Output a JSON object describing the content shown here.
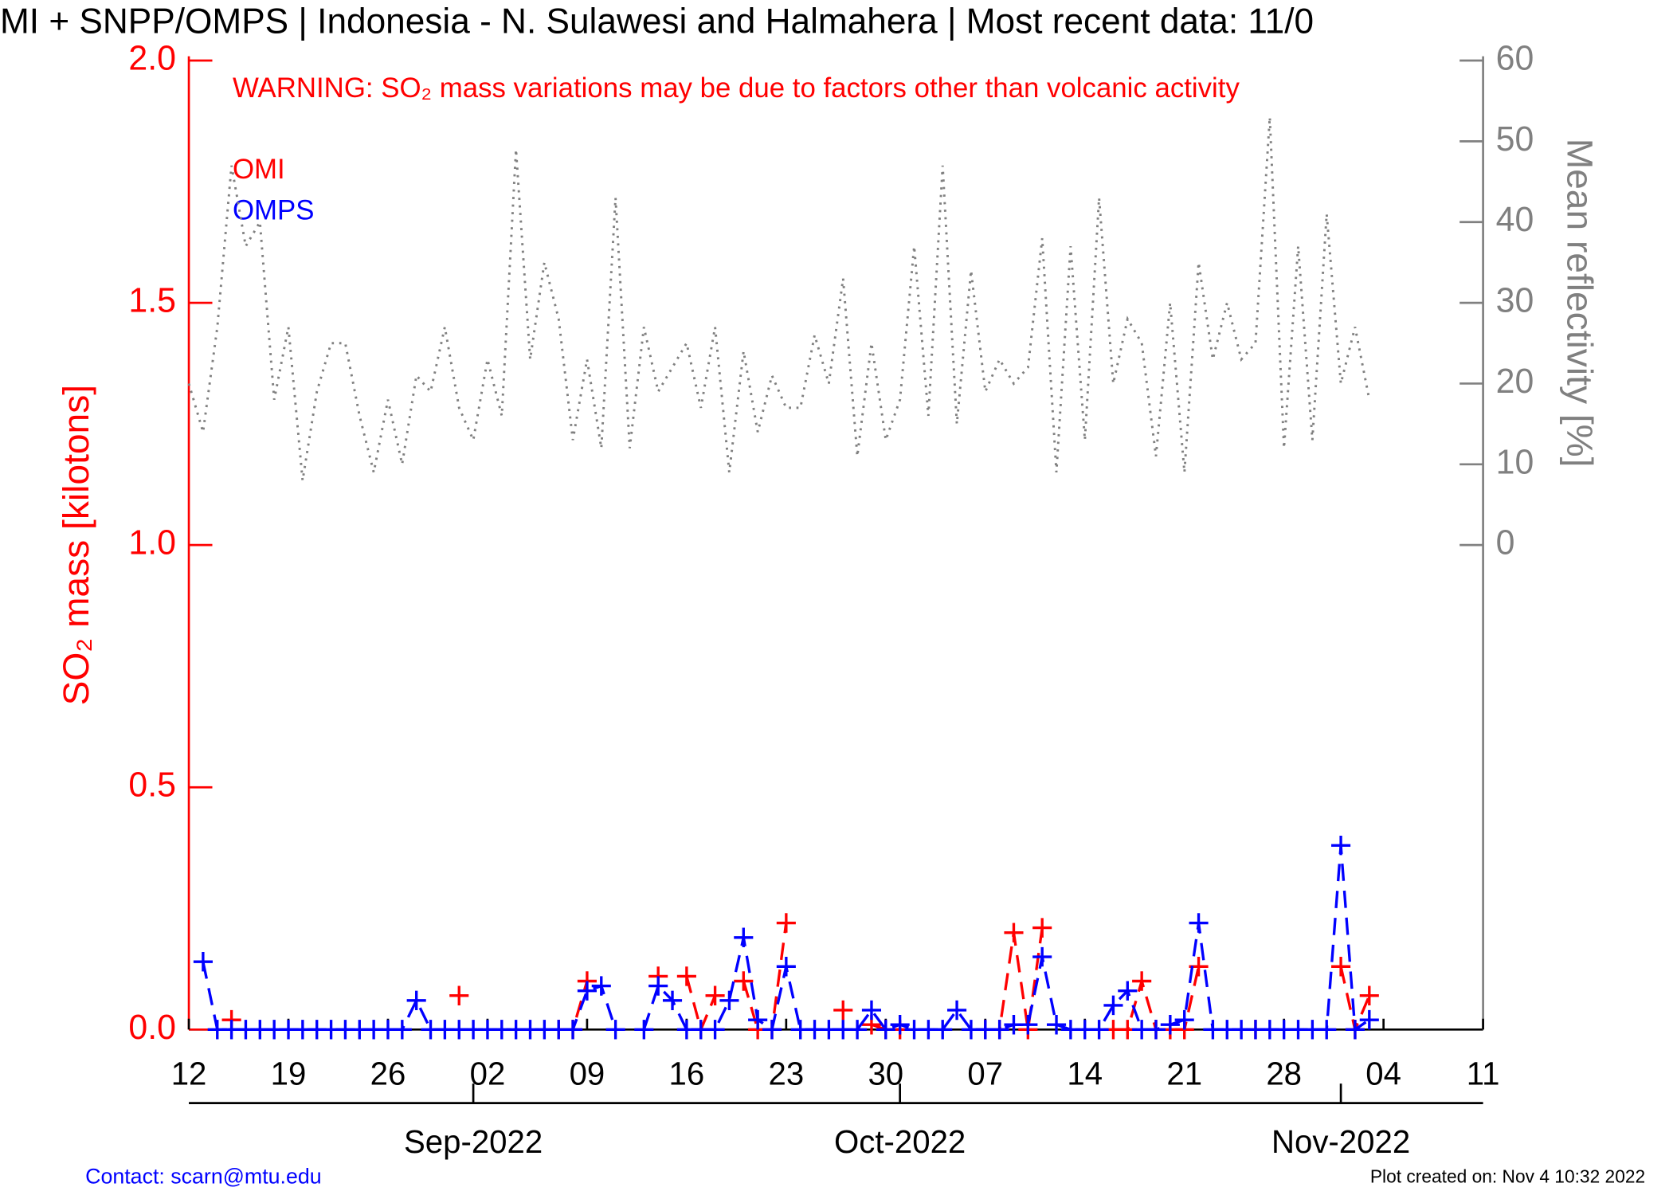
{
  "chart_data": {
    "type": "line",
    "title": "MI + SNPP/OMPS | Indonesia - N. Sulawesi and Halmahera | Most recent data: 11/0",
    "annotation": "WARNING: SO₂ mass variations may be due to factors other than volcanic activity",
    "y_label": "SO₂ mass [kilotons]",
    "y2_label": "Mean reflectivity [%]",
    "footer_left": "Contact: scarn@mtu.edu",
    "footer_right": "Plot created on: Nov  4 10:32 2022",
    "x": [
      "2022-08-12",
      "2022-08-13",
      "2022-08-14",
      "2022-08-15",
      "2022-08-16",
      "2022-08-17",
      "2022-08-18",
      "2022-08-19",
      "2022-08-20",
      "2022-08-21",
      "2022-08-22",
      "2022-08-23",
      "2022-08-24",
      "2022-08-25",
      "2022-08-26",
      "2022-08-27",
      "2022-08-28",
      "2022-08-29",
      "2022-08-30",
      "2022-08-31",
      "2022-09-01",
      "2022-09-02",
      "2022-09-03",
      "2022-09-04",
      "2022-09-05",
      "2022-09-06",
      "2022-09-07",
      "2022-09-08",
      "2022-09-09",
      "2022-09-10",
      "2022-09-11",
      "2022-09-12",
      "2022-09-13",
      "2022-09-14",
      "2022-09-15",
      "2022-09-16",
      "2022-09-17",
      "2022-09-18",
      "2022-09-19",
      "2022-09-20",
      "2022-09-21",
      "2022-09-22",
      "2022-09-23",
      "2022-09-24",
      "2022-09-25",
      "2022-09-26",
      "2022-09-27",
      "2022-09-28",
      "2022-09-29",
      "2022-09-30",
      "2022-10-01",
      "2022-10-02",
      "2022-10-03",
      "2022-10-04",
      "2022-10-05",
      "2022-10-06",
      "2022-10-07",
      "2022-10-08",
      "2022-10-09",
      "2022-10-10",
      "2022-10-11",
      "2022-10-12",
      "2022-10-13",
      "2022-10-14",
      "2022-10-15",
      "2022-10-16",
      "2022-10-17",
      "2022-10-18",
      "2022-10-19",
      "2022-10-20",
      "2022-10-21",
      "2022-10-22",
      "2022-10-23",
      "2022-10-24",
      "2022-10-25",
      "2022-10-26",
      "2022-10-27",
      "2022-10-28",
      "2022-10-29",
      "2022-10-30",
      "2022-10-31",
      "2022-11-01",
      "2022-11-02",
      "2022-11-03"
    ],
    "xlim": [
      "2022-08-12",
      "2022-11-11"
    ],
    "xticks": [
      {
        "value": "2022-08-12",
        "label": "12"
      },
      {
        "value": "2022-08-19",
        "label": "19"
      },
      {
        "value": "2022-08-26",
        "label": "26"
      },
      {
        "value": "2022-09-02",
        "label": "02"
      },
      {
        "value": "2022-09-09",
        "label": "09"
      },
      {
        "value": "2022-09-16",
        "label": "16"
      },
      {
        "value": "2022-09-23",
        "label": "23"
      },
      {
        "value": "2022-09-30",
        "label": "30"
      },
      {
        "value": "2022-10-07",
        "label": "07"
      },
      {
        "value": "2022-10-14",
        "label": "14"
      },
      {
        "value": "2022-10-21",
        "label": "21"
      },
      {
        "value": "2022-10-28",
        "label": "28"
      },
      {
        "value": "2022-11-04",
        "label": "04"
      },
      {
        "value": "2022-11-11",
        "label": "11"
      }
    ],
    "month_ticks": [
      {
        "value": "2022-09-01",
        "label": "Sep-2022"
      },
      {
        "value": "2022-10-01",
        "label": "Oct-2022"
      },
      {
        "value": "2022-11-01",
        "label": "Nov-2022"
      }
    ],
    "ylim": [
      0,
      2.0
    ],
    "yticks": [
      {
        "value": 0,
        "label": "0.0"
      },
      0.5,
      {
        "value": 1,
        "label": "1.0"
      },
      1.5,
      {
        "value": 2,
        "label": "2.0"
      }
    ],
    "y2lim": [
      -60,
      60
    ],
    "y2ticks": [
      0,
      10,
      20,
      30,
      40,
      50,
      60
    ],
    "series": [
      {
        "name": "OMI",
        "color": "#ff0000",
        "style": "dashed",
        "marker": "plus",
        "values": [
          null,
          null,
          null,
          0.02,
          null,
          null,
          null,
          null,
          null,
          null,
          null,
          null,
          null,
          null,
          null,
          null,
          null,
          null,
          null,
          0.07,
          null,
          null,
          null,
          null,
          null,
          null,
          0,
          0,
          0.1,
          null,
          null,
          null,
          null,
          0.11,
          null,
          0.11,
          0,
          0.07,
          null,
          0.1,
          0,
          0,
          0.22,
          null,
          null,
          null,
          0.04,
          null,
          0.01,
          0,
          0,
          null,
          null,
          null,
          null,
          null,
          0,
          0,
          0.2,
          0,
          0.21,
          null,
          null,
          null,
          null,
          0,
          0,
          0.1,
          0,
          0,
          0,
          0.13,
          null,
          null,
          null,
          0,
          null,
          null,
          null,
          null,
          null,
          0.13,
          0,
          0.07
        ]
      },
      {
        "name": "OMPS",
        "color": "#0000ff",
        "style": "dashed",
        "marker": "plus",
        "values": [
          null,
          0.14,
          0,
          0,
          0,
          0,
          0,
          0,
          0,
          0,
          0,
          0,
          0,
          0,
          0,
          0,
          0.06,
          0,
          0,
          0,
          0,
          0,
          0,
          0,
          0,
          0,
          0,
          0,
          0.08,
          0.09,
          0,
          null,
          0,
          0.09,
          0.06,
          0,
          0,
          0,
          0.06,
          0.19,
          0.02,
          0,
          0.13,
          0,
          0,
          0,
          0,
          0,
          0.04,
          0,
          0.01,
          0,
          0,
          0,
          0.04,
          0,
          0,
          0,
          0.01,
          0.01,
          0.15,
          0.01,
          0,
          0,
          0,
          0.05,
          0.08,
          0,
          0,
          0.01,
          0.02,
          0.22,
          0,
          0,
          0,
          0,
          0,
          0,
          0,
          0,
          0,
          0.38,
          0,
          0.02
        ]
      },
      {
        "color": "#808080",
        "style": "dotted",
        "axis": "y2",
        "values": [
          20,
          14,
          27,
          47,
          37,
          40,
          18,
          27,
          8,
          19,
          25,
          25,
          16,
          9,
          18,
          10,
          21,
          19,
          27,
          17,
          13,
          23,
          16,
          49,
          23,
          35,
          28,
          13,
          23,
          12,
          43,
          12,
          27,
          19,
          22,
          25,
          17,
          27,
          9,
          24,
          14,
          21,
          17,
          17,
          26,
          20,
          33,
          11,
          25,
          13,
          18,
          37,
          16,
          47,
          15,
          34,
          19,
          23,
          20,
          22,
          38,
          9,
          37,
          13,
          43,
          20,
          28,
          25,
          11,
          30,
          9,
          35,
          23,
          30,
          23,
          25,
          53,
          12,
          37,
          13,
          41,
          20,
          27,
          18
        ]
      }
    ]
  }
}
